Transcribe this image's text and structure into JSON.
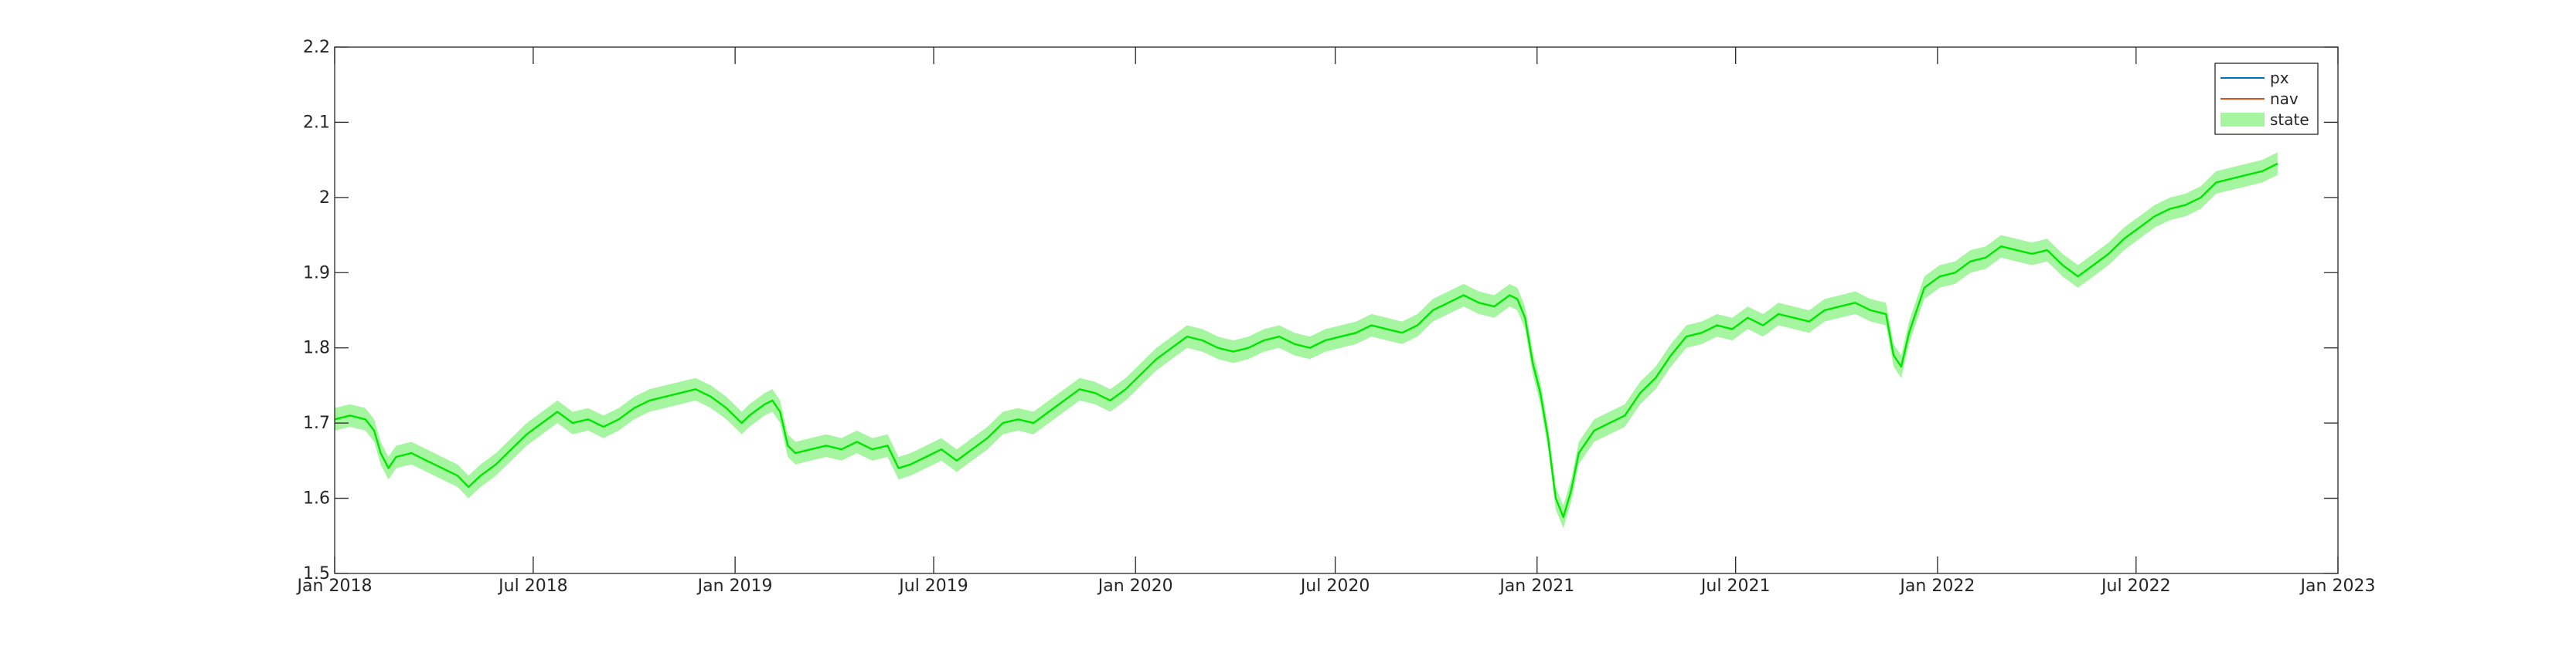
{
  "chart_data": {
    "type": "line",
    "title": "",
    "xlabel": "",
    "ylabel": "",
    "x_range": [
      "2018-01-01",
      "2023-01-01"
    ],
    "ylim": [
      1.5,
      2.2
    ],
    "x_ticks": [
      "Jan 2018",
      "Jul 2018",
      "Jan 2019",
      "Jul 2019",
      "Jan 2020",
      "Jul 2020",
      "Jan 2021",
      "Jul 2021",
      "Jan 2022",
      "Jul 2022",
      "Jan 2023"
    ],
    "x_tick_dates": [
      "2018-01-01",
      "2018-07-01",
      "2019-01-01",
      "2019-07-01",
      "2020-01-01",
      "2020-07-01",
      "2021-01-01",
      "2021-07-01",
      "2022-01-01",
      "2022-07-01",
      "2023-01-01"
    ],
    "y_ticks": [
      "1.5",
      "1.6",
      "1.7",
      "1.8",
      "1.9",
      "2",
      "2.1",
      "2.2"
    ],
    "y_tick_values": [
      1.5,
      1.6,
      1.7,
      1.8,
      1.9,
      2.0,
      2.1,
      2.2
    ],
    "grid": false,
    "legend_position": "top-right",
    "band_halfwidth": 0.015,
    "legend": [
      {
        "label": "px",
        "kind": "line",
        "color": "#0072BD"
      },
      {
        "label": "nav",
        "kind": "line",
        "color": "#D95319"
      },
      {
        "label": "state",
        "kind": "band",
        "color": "#A6F5A0"
      }
    ],
    "series": [
      {
        "name": "state",
        "color": "#00E600",
        "band_color": "#A6F5A0",
        "points": [
          [
            "2018-01-01",
            1.705
          ],
          [
            "2018-01-15",
            1.71
          ],
          [
            "2018-01-29",
            1.705
          ],
          [
            "2018-02-06",
            1.69
          ],
          [
            "2018-02-12",
            1.66
          ],
          [
            "2018-02-19",
            1.64
          ],
          [
            "2018-02-26",
            1.655
          ],
          [
            "2018-03-12",
            1.66
          ],
          [
            "2018-03-26",
            1.65
          ],
          [
            "2018-04-09",
            1.64
          ],
          [
            "2018-04-23",
            1.63
          ],
          [
            "2018-05-03",
            1.615
          ],
          [
            "2018-05-14",
            1.63
          ],
          [
            "2018-05-28",
            1.645
          ],
          [
            "2018-06-11",
            1.665
          ],
          [
            "2018-06-25",
            1.685
          ],
          [
            "2018-07-09",
            1.7
          ],
          [
            "2018-07-23",
            1.715
          ],
          [
            "2018-08-06",
            1.7
          ],
          [
            "2018-08-20",
            1.705
          ],
          [
            "2018-09-03",
            1.695
          ],
          [
            "2018-09-17",
            1.705
          ],
          [
            "2018-10-01",
            1.72
          ],
          [
            "2018-10-15",
            1.73
          ],
          [
            "2018-10-29",
            1.735
          ],
          [
            "2018-11-12",
            1.74
          ],
          [
            "2018-11-26",
            1.745
          ],
          [
            "2018-12-10",
            1.735
          ],
          [
            "2018-12-24",
            1.72
          ],
          [
            "2019-01-07",
            1.7
          ],
          [
            "2019-01-14",
            1.71
          ],
          [
            "2019-01-28",
            1.725
          ],
          [
            "2019-02-04",
            1.73
          ],
          [
            "2019-02-11",
            1.715
          ],
          [
            "2019-02-18",
            1.67
          ],
          [
            "2019-02-25",
            1.66
          ],
          [
            "2019-03-11",
            1.665
          ],
          [
            "2019-03-25",
            1.67
          ],
          [
            "2019-04-08",
            1.665
          ],
          [
            "2019-04-22",
            1.675
          ],
          [
            "2019-05-06",
            1.665
          ],
          [
            "2019-05-20",
            1.67
          ],
          [
            "2019-05-30",
            1.64
          ],
          [
            "2019-06-10",
            1.645
          ],
          [
            "2019-06-24",
            1.655
          ],
          [
            "2019-07-08",
            1.665
          ],
          [
            "2019-07-22",
            1.65
          ],
          [
            "2019-08-05",
            1.665
          ],
          [
            "2019-08-19",
            1.68
          ],
          [
            "2019-09-02",
            1.7
          ],
          [
            "2019-09-16",
            1.705
          ],
          [
            "2019-09-30",
            1.7
          ],
          [
            "2019-10-14",
            1.715
          ],
          [
            "2019-10-28",
            1.73
          ],
          [
            "2019-11-11",
            1.745
          ],
          [
            "2019-11-25",
            1.74
          ],
          [
            "2019-12-09",
            1.73
          ],
          [
            "2019-12-23",
            1.745
          ],
          [
            "2020-01-06",
            1.765
          ],
          [
            "2020-01-20",
            1.785
          ],
          [
            "2020-02-03",
            1.8
          ],
          [
            "2020-02-17",
            1.815
          ],
          [
            "2020-03-02",
            1.81
          ],
          [
            "2020-03-16",
            1.8
          ],
          [
            "2020-03-30",
            1.795
          ],
          [
            "2020-04-13",
            1.8
          ],
          [
            "2020-04-27",
            1.81
          ],
          [
            "2020-05-11",
            1.815
          ],
          [
            "2020-05-25",
            1.805
          ],
          [
            "2020-06-08",
            1.8
          ],
          [
            "2020-06-22",
            1.81
          ],
          [
            "2020-07-06",
            1.815
          ],
          [
            "2020-07-20",
            1.82
          ],
          [
            "2020-08-03",
            1.83
          ],
          [
            "2020-08-17",
            1.825
          ],
          [
            "2020-08-31",
            1.82
          ],
          [
            "2020-09-14",
            1.83
          ],
          [
            "2020-09-28",
            1.85
          ],
          [
            "2020-10-12",
            1.86
          ],
          [
            "2020-10-26",
            1.87
          ],
          [
            "2020-11-09",
            1.86
          ],
          [
            "2020-11-23",
            1.855
          ],
          [
            "2020-12-07",
            1.87
          ],
          [
            "2020-12-14",
            1.865
          ],
          [
            "2020-12-21",
            1.84
          ],
          [
            "2020-12-28",
            1.78
          ],
          [
            "2021-01-04",
            1.74
          ],
          [
            "2021-01-11",
            1.68
          ],
          [
            "2021-01-18",
            1.6
          ],
          [
            "2021-01-25",
            1.575
          ],
          [
            "2021-02-01",
            1.61
          ],
          [
            "2021-02-08",
            1.66
          ],
          [
            "2021-02-22",
            1.69
          ],
          [
            "2021-03-08",
            1.7
          ],
          [
            "2021-03-22",
            1.71
          ],
          [
            "2021-04-05",
            1.74
          ],
          [
            "2021-04-19",
            1.76
          ],
          [
            "2021-05-03",
            1.79
          ],
          [
            "2021-05-17",
            1.815
          ],
          [
            "2021-05-31",
            1.82
          ],
          [
            "2021-06-14",
            1.83
          ],
          [
            "2021-06-28",
            1.825
          ],
          [
            "2021-07-12",
            1.84
          ],
          [
            "2021-07-26",
            1.83
          ],
          [
            "2021-08-09",
            1.845
          ],
          [
            "2021-08-23",
            1.84
          ],
          [
            "2021-09-06",
            1.835
          ],
          [
            "2021-09-20",
            1.85
          ],
          [
            "2021-10-04",
            1.855
          ],
          [
            "2021-10-18",
            1.86
          ],
          [
            "2021-11-01",
            1.85
          ],
          [
            "2021-11-15",
            1.845
          ],
          [
            "2021-11-22",
            1.79
          ],
          [
            "2021-11-29",
            1.775
          ],
          [
            "2021-12-06",
            1.82
          ],
          [
            "2021-12-20",
            1.88
          ],
          [
            "2022-01-03",
            1.895
          ],
          [
            "2022-01-17",
            1.9
          ],
          [
            "2022-01-31",
            1.915
          ],
          [
            "2022-02-14",
            1.92
          ],
          [
            "2022-02-28",
            1.935
          ],
          [
            "2022-03-14",
            1.93
          ],
          [
            "2022-03-28",
            1.925
          ],
          [
            "2022-04-11",
            1.93
          ],
          [
            "2022-04-25",
            1.91
          ],
          [
            "2022-05-09",
            1.895
          ],
          [
            "2022-05-23",
            1.91
          ],
          [
            "2022-06-06",
            1.925
          ],
          [
            "2022-06-20",
            1.945
          ],
          [
            "2022-07-04",
            1.96
          ],
          [
            "2022-07-18",
            1.975
          ],
          [
            "2022-08-01",
            1.985
          ],
          [
            "2022-08-15",
            1.99
          ],
          [
            "2022-08-29",
            2.0
          ],
          [
            "2022-09-12",
            2.02
          ],
          [
            "2022-09-26",
            2.025
          ],
          [
            "2022-10-10",
            2.03
          ],
          [
            "2022-10-24",
            2.035
          ],
          [
            "2022-11-07",
            2.045
          ]
        ]
      }
    ]
  }
}
